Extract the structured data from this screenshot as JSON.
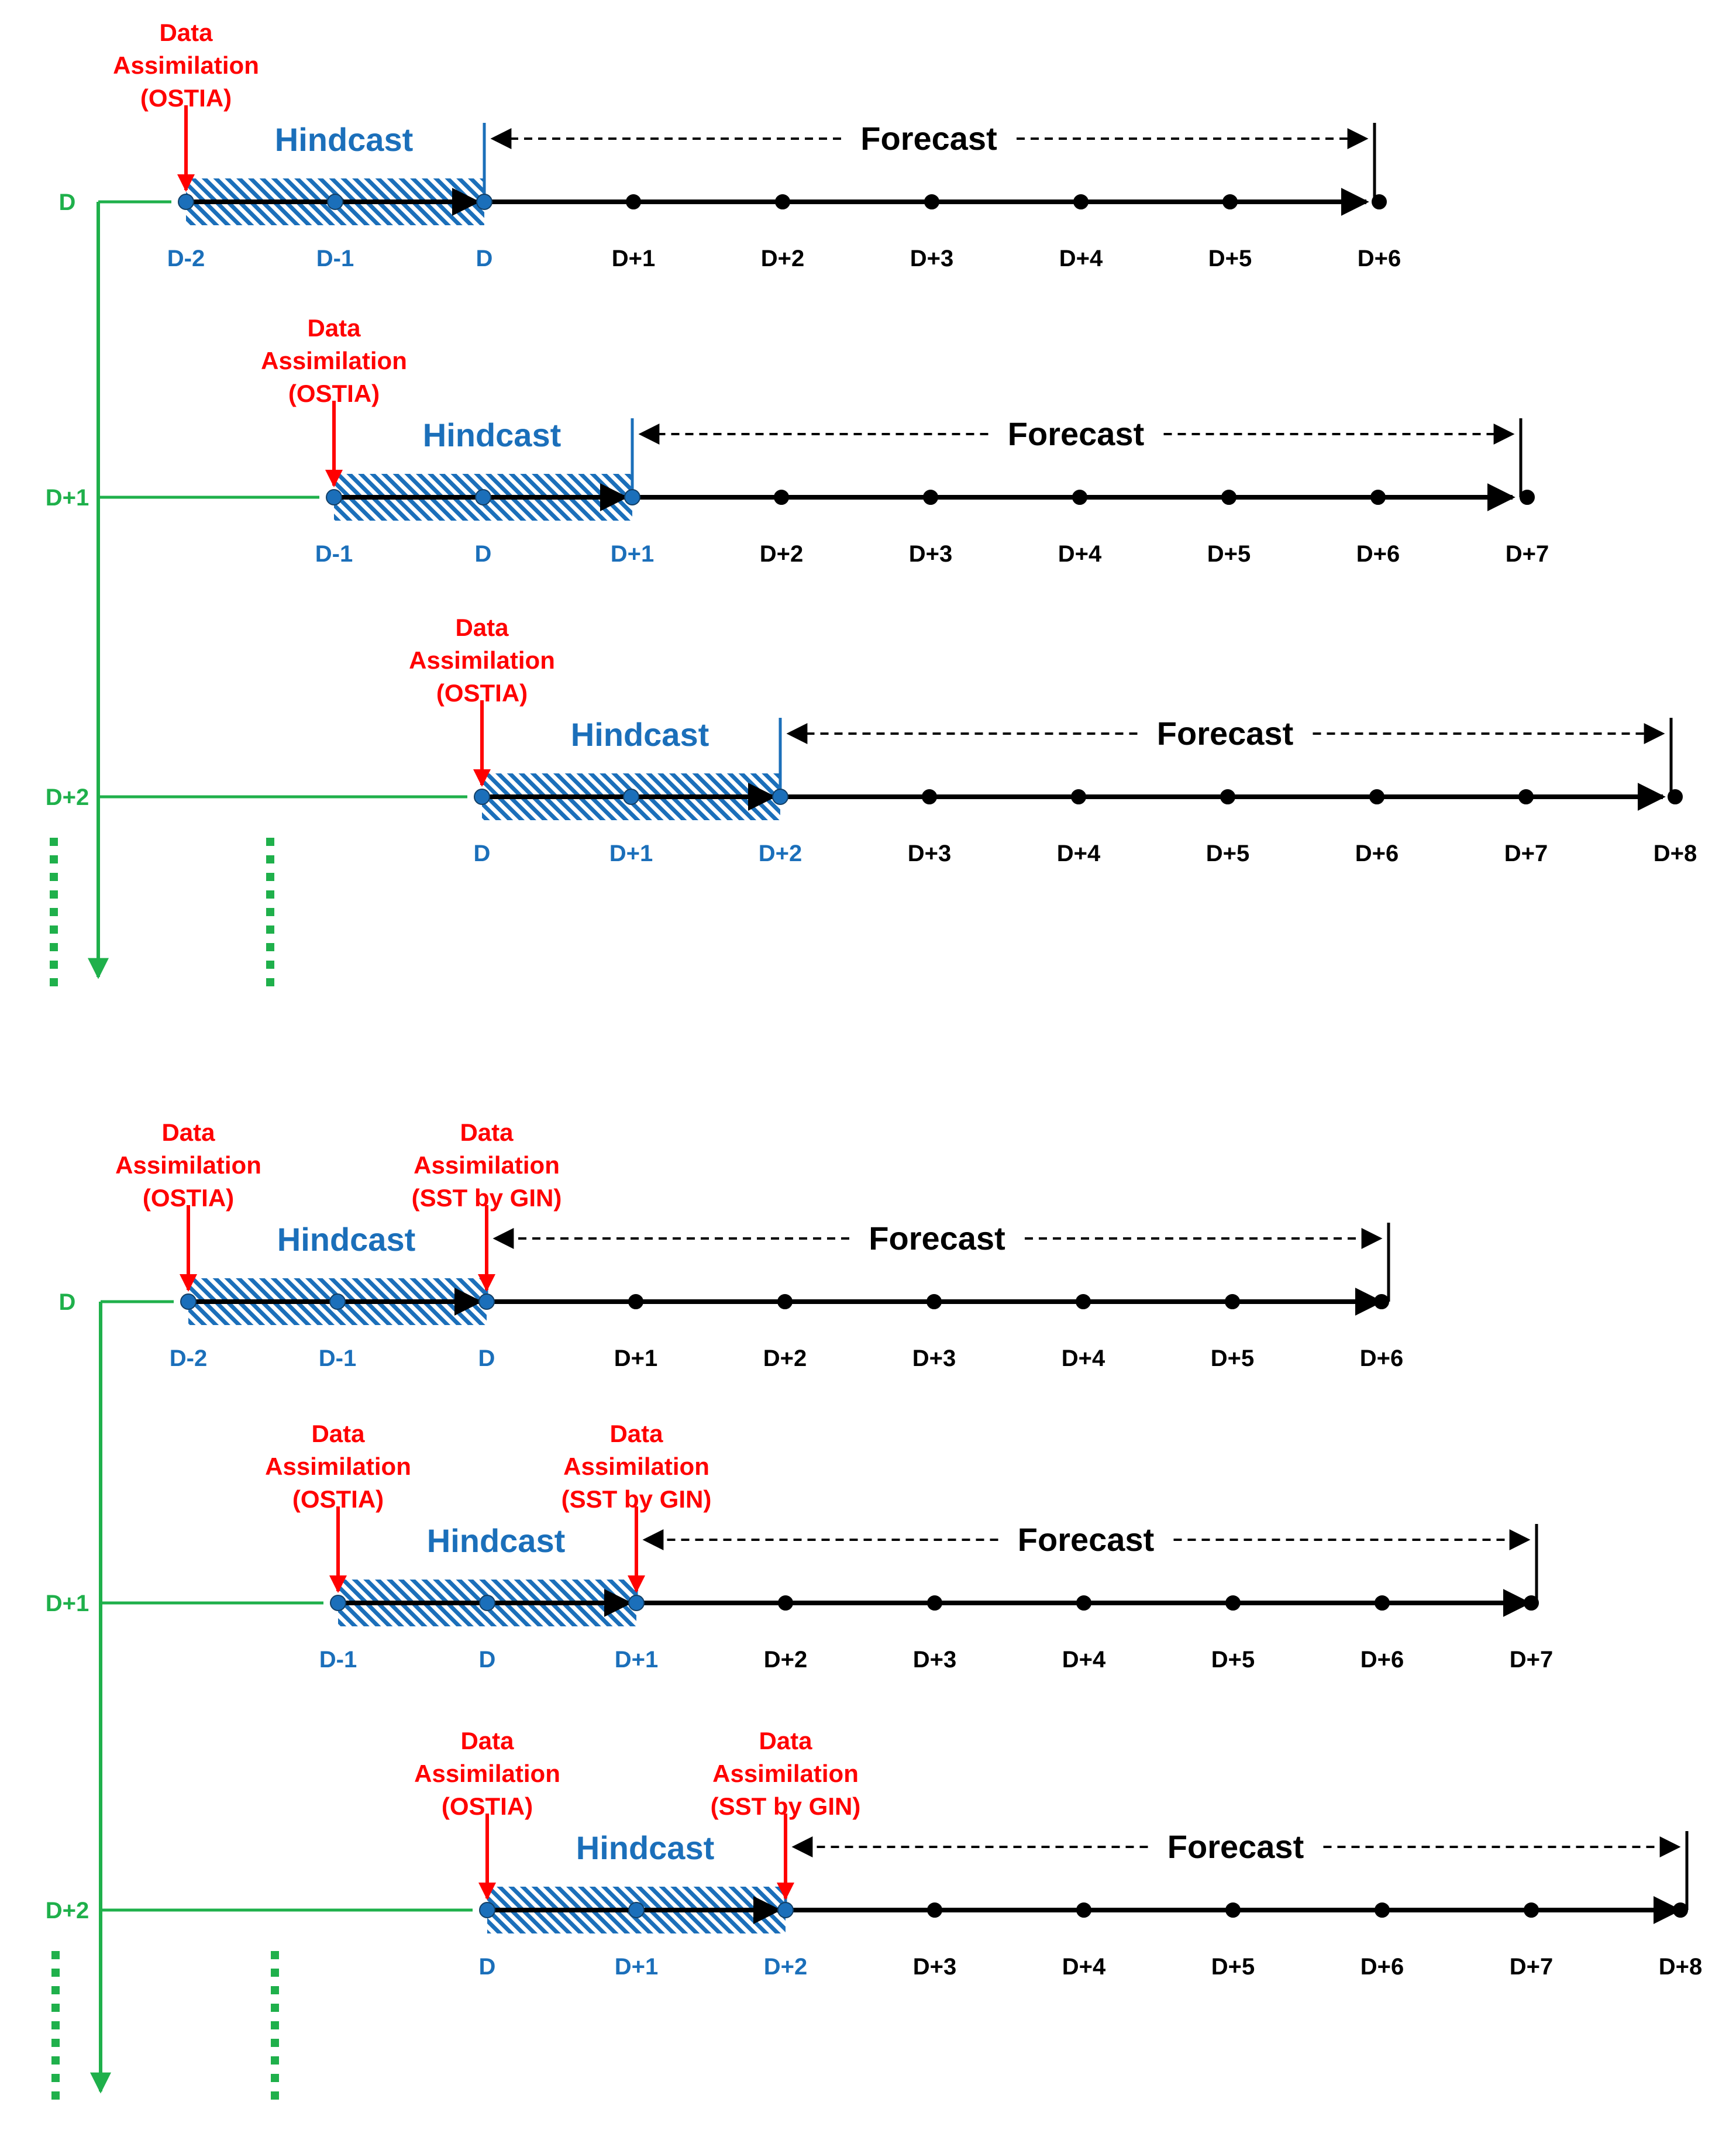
{
  "labels": {
    "hindcast": "Hindcast",
    "forecast": "Forecast",
    "da_lines": [
      "Data",
      "Assimilation",
      "(OSTIA)"
    ],
    "da_gin_lines": [
      "Data",
      "Assimilation",
      "(SST by GIN)"
    ]
  },
  "colors": {
    "green": "#1fb04b",
    "blue": "#1b6fba",
    "red": "#ff0000",
    "black": "#000000"
  },
  "panels": [
    {
      "id": "top",
      "gin_assimilation": false,
      "rows": [
        {
          "day_label": "D",
          "tick_labels": [
            "D-2",
            "D-1",
            "D",
            "D+1",
            "D+2",
            "D+3",
            "D+4",
            "D+5",
            "D+6"
          ]
        },
        {
          "day_label": "D+1",
          "tick_labels": [
            "D-1",
            "D",
            "D+1",
            "D+2",
            "D+3",
            "D+4",
            "D+5",
            "D+6",
            "D+7"
          ]
        },
        {
          "day_label": "D+2",
          "tick_labels": [
            "D",
            "D+1",
            "D+2",
            "D+3",
            "D+4",
            "D+5",
            "D+6",
            "D+7",
            "D+8"
          ]
        }
      ]
    },
    {
      "id": "bottom",
      "gin_assimilation": true,
      "rows": [
        {
          "day_label": "D",
          "tick_labels": [
            "D-2",
            "D-1",
            "D",
            "D+1",
            "D+2",
            "D+3",
            "D+4",
            "D+5",
            "D+6"
          ]
        },
        {
          "day_label": "D+1",
          "tick_labels": [
            "D-1",
            "D",
            "D+1",
            "D+2",
            "D+3",
            "D+4",
            "D+5",
            "D+6",
            "D+7"
          ]
        },
        {
          "day_label": "D+2",
          "tick_labels": [
            "D",
            "D+1",
            "D+2",
            "D+3",
            "D+4",
            "D+5",
            "D+6",
            "D+7",
            "D+8"
          ]
        }
      ]
    }
  ]
}
